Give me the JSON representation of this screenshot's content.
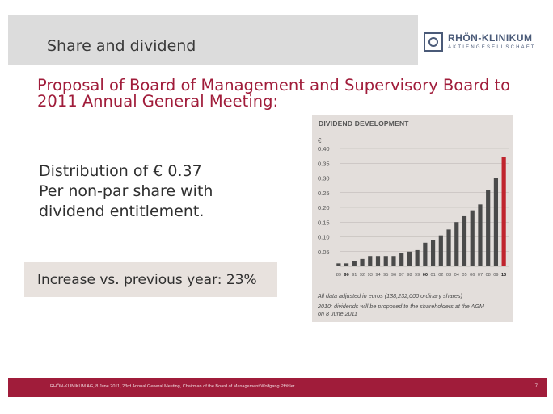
{
  "header": {
    "title": "Share and dividend",
    "logo_name": "RHÖN-KLINIKUM",
    "logo_sub": "AKTIENGESELLSCHAFT"
  },
  "main": {
    "proposal_line1": "Proposal of Board of Management and Supervisory Board to",
    "proposal_line2": "2011 Annual General Meeting:",
    "distribution_line1": "Distribution of € 0.37",
    "distribution_line2": "Per non-par share with",
    "distribution_line3": "dividend entitlement.",
    "increase": "Increase vs. previous year: 23%"
  },
  "chart_data": {
    "type": "bar",
    "title": "DIVIDEND DEVELOPMENT",
    "ylabel": "€",
    "ylim": [
      0,
      0.4
    ],
    "yticks": [
      "0.05",
      "0.10",
      "0.15",
      "0.20",
      "0.25",
      "0.30",
      "0.35",
      "0.40"
    ],
    "categories": [
      "89",
      "90",
      "91",
      "92",
      "93",
      "94",
      "95",
      "96",
      "97",
      "98",
      "99",
      "00",
      "01",
      "02",
      "03",
      "04",
      "05",
      "06",
      "07",
      "08",
      "09",
      "10"
    ],
    "bold_categories": [
      "90",
      "00",
      "10"
    ],
    "values": [
      0.01,
      0.01,
      0.018,
      0.025,
      0.035,
      0.035,
      0.035,
      0.035,
      0.045,
      0.05,
      0.055,
      0.08,
      0.09,
      0.105,
      0.125,
      0.15,
      0.17,
      0.19,
      0.21,
      0.26,
      0.3,
      0.37
    ],
    "colors": {
      "default": "#4a4a4a",
      "highlight": "#c0242e"
    },
    "highlight_index": 21,
    "grid": true,
    "notes": [
      "All data adjusted in euros (138,232,000 ordinary shares)",
      "2010: dividends will be proposed to the shareholders at the AGM",
      "on 8 June 2011"
    ]
  },
  "footer": {
    "text": "RHÖN-KLINIKUM AG, 8 June 2011, 23rd Annual General Meeting, Chairman of the Board of Management Wolfgang Pföhler",
    "page": "7"
  },
  "colors": {
    "accent": "#a01c3a",
    "header_band": "#dcdcdc",
    "chart_panel": "#e3dedb"
  }
}
